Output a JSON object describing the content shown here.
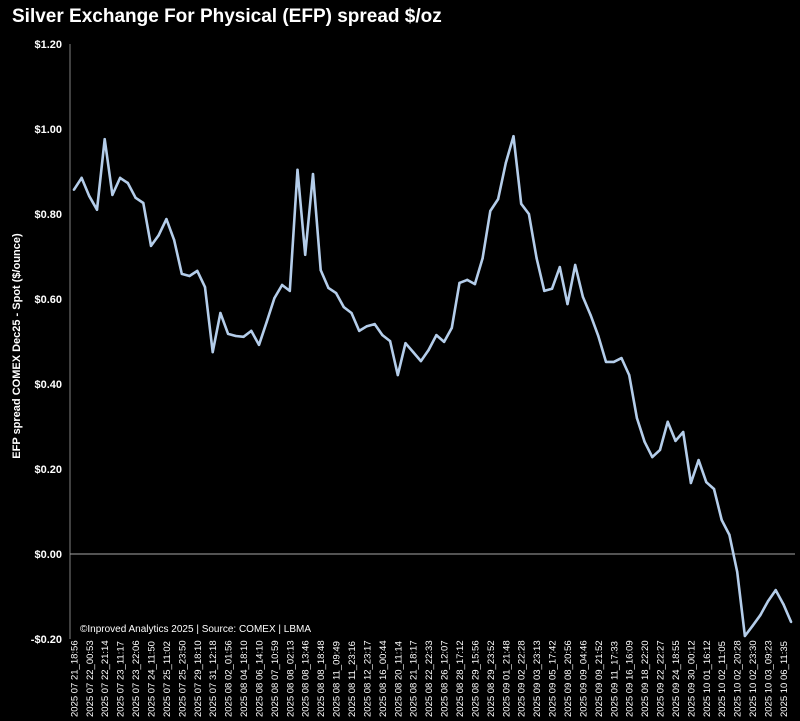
{
  "chart_data": {
    "type": "line",
    "title": "Silver Exchange For Physical (EFP) spread $/oz",
    "ylabel": "EFP spread COMEX Dec25 - Spot ($/ounce)",
    "xlabel": "",
    "ylim": [
      -0.2,
      1.2
    ],
    "yticks": [
      1.2,
      1.0,
      0.8,
      0.6,
      0.4,
      0.2,
      0.0,
      -0.2
    ],
    "ytick_labels": [
      "$1.20",
      "$1.00",
      "$0.80",
      "$0.60",
      "$0.40",
      "$0.20",
      "$0.00",
      "-$0.20"
    ],
    "grid": false,
    "zero_line": true,
    "line_color": "#b4cdea",
    "background": "#000000",
    "xtick_labels": [
      "2025 07 21_18:56",
      "2025 07 22_00:53",
      "2025 07 22_21:14",
      "2025 07 23_11:17",
      "2025 07 23_22:06",
      "2025 07 24_11:50",
      "2025 07 25_11:02",
      "2025 07 25_23:50",
      "2025 07 29_18:10",
      "2025 07 31_12:18",
      "2025 08 02_01:56",
      "2025 08 04_18:10",
      "2025 08 06_14:10",
      "2025 08 07_10:59",
      "2025 08 08_02:13",
      "2025 08 08_13:46",
      "2025 08 08_18:48",
      "2025 08 11_09:49",
      "2025 08 11_23:16",
      "2025 08 12_23:17",
      "2025 08 16_00:44",
      "2025 08 20_11:14",
      "2025 08 21_18:17",
      "2025 08 22_22:33",
      "2025 08 26_12:07",
      "2025 08 28_17:12",
      "2025 08 29_15:56",
      "2025 08 29_23:52",
      "2025 09 01_21:48",
      "2025 09 02_22:28",
      "2025 09 03_23:13",
      "2025 09 05_17:42",
      "2025 09 08_20:56",
      "2025 09 09_04:46",
      "2025 09 09_21:52",
      "2025 09 11_17:33",
      "2025 09 16_16:09",
      "2025 09 18_22:20",
      "2025 09 22_22:27",
      "2025 09 24_18:55",
      "2025 09 30_00:12",
      "2025 10 01_16:12",
      "2025 10 02_11:05",
      "2025 10 02_20:28",
      "2025 10 02_23:30",
      "2025 10 03_09:23",
      "2025 10 06_11:35"
    ],
    "series": [
      {
        "values": [
          0.857,
          0.885,
          0.842,
          0.81,
          0.976,
          0.845,
          0.885,
          0.873,
          0.838,
          0.826,
          0.725,
          0.75,
          0.788,
          0.739,
          0.659,
          0.654,
          0.666,
          0.628,
          0.475,
          0.567,
          0.518,
          0.513,
          0.511,
          0.525,
          0.492,
          0.546,
          0.602,
          0.633,
          0.619,
          0.904,
          0.704,
          0.894,
          0.668,
          0.626,
          0.614,
          0.581,
          0.567,
          0.525,
          0.536,
          0.541,
          0.515,
          0.501,
          0.421,
          0.496,
          0.475,
          0.454,
          0.48,
          0.515,
          0.499,
          0.532,
          0.638,
          0.645,
          0.635,
          0.696,
          0.807,
          0.835,
          0.92,
          0.983,
          0.824,
          0.8,
          0.696,
          0.619,
          0.624,
          0.675,
          0.588,
          0.68,
          0.605,
          0.562,
          0.513,
          0.452,
          0.452,
          0.461,
          0.421,
          0.32,
          0.264,
          0.228,
          0.245,
          0.311,
          0.266,
          0.287,
          0.167,
          0.221,
          0.169,
          0.153,
          0.08,
          0.045,
          -0.042,
          -0.193,
          -0.169,
          -0.144,
          -0.111,
          -0.085,
          -0.118,
          -0.16
        ]
      }
    ],
    "annotation": "©Inproved Analytics 2025 | Source: COMEX | LBMA"
  }
}
